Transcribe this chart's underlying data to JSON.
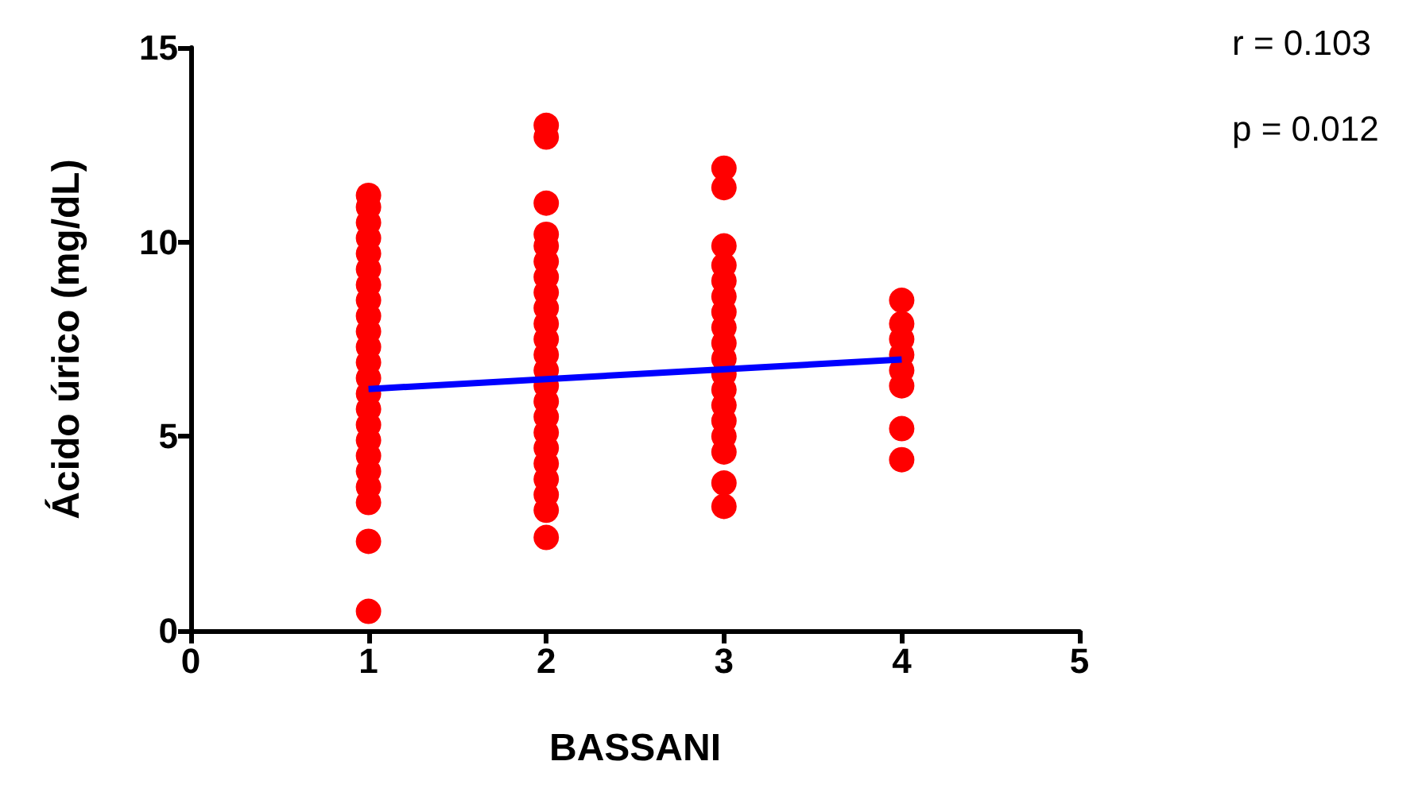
{
  "chart_data": {
    "type": "scatter",
    "xlabel": "BASSANI",
    "ylabel": "Ácido úrico (mg/dL)",
    "annotations": [
      "r = 0.103",
      "p = 0.012"
    ],
    "xlim": [
      0,
      5
    ],
    "xticks": [
      0,
      1,
      2,
      3,
      4,
      5
    ],
    "ylim": [
      0,
      15
    ],
    "yticks": [
      0,
      5,
      10,
      15
    ],
    "grid": false,
    "marker": "circle",
    "series": [
      {
        "color": "#ff0000",
        "x": [
          1,
          1,
          1,
          1,
          1,
          1,
          1,
          1,
          1,
          1,
          1,
          1,
          1,
          1,
          1,
          1,
          1,
          1,
          1,
          1,
          1,
          1,
          1,
          2,
          2,
          2,
          2,
          2,
          2,
          2,
          2,
          2,
          2,
          2,
          2,
          2,
          2,
          2,
          2,
          2,
          2,
          2,
          2,
          2,
          2,
          2,
          3,
          3,
          3,
          3,
          3,
          3,
          3,
          3,
          3,
          3,
          3,
          3,
          3,
          3,
          3,
          3,
          3,
          3,
          4,
          4,
          4,
          4,
          4,
          4,
          4,
          4
        ],
        "values": [
          11.2,
          10.9,
          10.5,
          10.1,
          9.7,
          9.3,
          8.9,
          8.5,
          8.1,
          7.7,
          7.3,
          6.9,
          6.5,
          6.1,
          5.7,
          5.3,
          4.9,
          4.5,
          4.1,
          3.7,
          3.3,
          2.3,
          0.5,
          13.0,
          12.7,
          11.0,
          10.2,
          9.9,
          9.5,
          9.1,
          8.7,
          8.3,
          7.9,
          7.5,
          7.1,
          6.7,
          6.3,
          5.9,
          5.5,
          5.1,
          4.7,
          4.3,
          3.9,
          3.5,
          3.1,
          2.4,
          11.9,
          11.4,
          9.9,
          9.4,
          9.0,
          8.6,
          8.2,
          7.8,
          7.4,
          7.0,
          6.6,
          6.2,
          5.8,
          5.4,
          5.0,
          4.6,
          3.8,
          3.2,
          8.5,
          7.9,
          7.5,
          7.1,
          6.7,
          6.3,
          5.2,
          4.4
        ]
      },
      {
        "type": "line",
        "color": "#0000ff",
        "marker": "none",
        "x": [
          1,
          4
        ],
        "values": [
          6.22,
          6.98
        ]
      }
    ]
  }
}
